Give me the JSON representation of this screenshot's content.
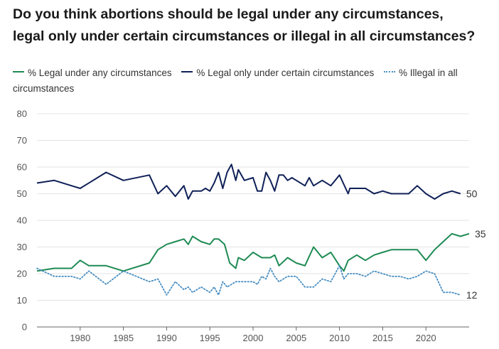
{
  "title_line1": "Do you think abortions should be legal under any circumstances,",
  "title_line2": "legal only under certain circumstances or illegal in all circumstances?",
  "colors": {
    "legal_any": "#1e8a53",
    "legal_certain": "#0f2057",
    "illegal": "#4a8fc2",
    "grid": "#e3e3e3",
    "axis": "#555555"
  },
  "chart_data": {
    "type": "line",
    "xlim": [
      1975,
      2025
    ],
    "ylim": [
      0,
      80
    ],
    "x_ticks": [
      1980,
      1985,
      1990,
      1995,
      2000,
      2005,
      2010,
      2015,
      2020
    ],
    "y_ticks": [
      0,
      10,
      20,
      30,
      40,
      50,
      60,
      70,
      80
    ],
    "legend_position": "top",
    "grid": true,
    "series": [
      {
        "name": "% Legal under any circumstances",
        "style": "solid",
        "end_label": "35",
        "points": [
          [
            1975,
            21
          ],
          [
            1977,
            22
          ],
          [
            1979,
            22
          ],
          [
            1980,
            25
          ],
          [
            1981,
            23
          ],
          [
            1983,
            23
          ],
          [
            1985,
            21
          ],
          [
            1988,
            24
          ],
          [
            1989,
            29
          ],
          [
            1990,
            31
          ],
          [
            1991,
            32
          ],
          [
            1992,
            33
          ],
          [
            1992.5,
            31
          ],
          [
            1993,
            34
          ],
          [
            1994,
            32
          ],
          [
            1995,
            31
          ],
          [
            1995.5,
            33
          ],
          [
            1996,
            33
          ],
          [
            1996.7,
            31
          ],
          [
            1997.3,
            24
          ],
          [
            1998,
            22
          ],
          [
            1998.3,
            26
          ],
          [
            1999,
            25
          ],
          [
            2000,
            28
          ],
          [
            2001,
            26
          ],
          [
            2002,
            26
          ],
          [
            2002.5,
            27
          ],
          [
            2003,
            23
          ],
          [
            2004,
            26
          ],
          [
            2005,
            24
          ],
          [
            2006,
            23
          ],
          [
            2007,
            30
          ],
          [
            2008,
            26
          ],
          [
            2009,
            28
          ],
          [
            2010,
            23
          ],
          [
            2010.5,
            21
          ],
          [
            2011,
            25
          ],
          [
            2012,
            27
          ],
          [
            2013,
            25
          ],
          [
            2014,
            27
          ],
          [
            2015,
            28
          ],
          [
            2016,
            29
          ],
          [
            2017,
            29
          ],
          [
            2019,
            29
          ],
          [
            2020,
            25
          ],
          [
            2021,
            29
          ],
          [
            2022,
            32
          ],
          [
            2023,
            35
          ],
          [
            2024,
            34
          ],
          [
            2025,
            35
          ]
        ]
      },
      {
        "name": "% Legal only under certain circumstances",
        "style": "solid",
        "end_label": "50",
        "points": [
          [
            1975,
            54
          ],
          [
            1977,
            55
          ],
          [
            1979,
            53
          ],
          [
            1980,
            52
          ],
          [
            1983,
            58
          ],
          [
            1985,
            55
          ],
          [
            1988,
            57
          ],
          [
            1989,
            50
          ],
          [
            1990,
            53
          ],
          [
            1991,
            49
          ],
          [
            1992,
            53
          ],
          [
            1992.5,
            48
          ],
          [
            1993,
            51
          ],
          [
            1994,
            51
          ],
          [
            1994.5,
            52
          ],
          [
            1995,
            51
          ],
          [
            1995.5,
            54
          ],
          [
            1996,
            58
          ],
          [
            1996.5,
            52
          ],
          [
            1997,
            58
          ],
          [
            1997.5,
            61
          ],
          [
            1998,
            55
          ],
          [
            1998.3,
            59
          ],
          [
            1999,
            55
          ],
          [
            2000,
            56
          ],
          [
            2000.5,
            51
          ],
          [
            2001,
            51
          ],
          [
            2001.5,
            58
          ],
          [
            2002,
            55
          ],
          [
            2002.5,
            51
          ],
          [
            2003,
            57
          ],
          [
            2003.5,
            57
          ],
          [
            2004,
            55
          ],
          [
            2004.5,
            56
          ],
          [
            2005,
            55
          ],
          [
            2006,
            53
          ],
          [
            2006.5,
            56
          ],
          [
            2007,
            53
          ],
          [
            2008,
            55
          ],
          [
            2009,
            53
          ],
          [
            2010,
            57
          ],
          [
            2011,
            50
          ],
          [
            2011.2,
            52
          ],
          [
            2012,
            52
          ],
          [
            2013,
            52
          ],
          [
            2014,
            50
          ],
          [
            2015,
            51
          ],
          [
            2016,
            50
          ],
          [
            2017,
            50
          ],
          [
            2018,
            50
          ],
          [
            2019,
            53
          ],
          [
            2020,
            50
          ],
          [
            2021,
            48
          ],
          [
            2022,
            50
          ],
          [
            2023,
            51
          ],
          [
            2024,
            50
          ]
        ]
      },
      {
        "name": "% Illegal in all circumstances",
        "style": "dotted",
        "end_label": "12",
        "points": [
          [
            1975,
            22
          ],
          [
            1977,
            19
          ],
          [
            1979,
            19
          ],
          [
            1980,
            18
          ],
          [
            1981,
            21
          ],
          [
            1983,
            16
          ],
          [
            1985,
            21
          ],
          [
            1988,
            17
          ],
          [
            1989,
            18
          ],
          [
            1990,
            12
          ],
          [
            1991,
            17
          ],
          [
            1992,
            14
          ],
          [
            1992.5,
            15
          ],
          [
            1993,
            13
          ],
          [
            1994,
            15
          ],
          [
            1995,
            13
          ],
          [
            1995.5,
            15
          ],
          [
            1996,
            12
          ],
          [
            1996.5,
            17
          ],
          [
            1997,
            15
          ],
          [
            1998,
            17
          ],
          [
            1999,
            17
          ],
          [
            2000,
            17
          ],
          [
            2000.5,
            16
          ],
          [
            2001,
            19
          ],
          [
            2001.5,
            18
          ],
          [
            2002,
            22
          ],
          [
            2002.5,
            19
          ],
          [
            2003,
            17
          ],
          [
            2004,
            19
          ],
          [
            2005,
            19
          ],
          [
            2006,
            15
          ],
          [
            2007,
            15
          ],
          [
            2008,
            18
          ],
          [
            2009,
            17
          ],
          [
            2010,
            23
          ],
          [
            2010.5,
            18
          ],
          [
            2011,
            20
          ],
          [
            2012,
            20
          ],
          [
            2013,
            19
          ],
          [
            2014,
            21
          ],
          [
            2015,
            20
          ],
          [
            2016,
            19
          ],
          [
            2017,
            19
          ],
          [
            2018,
            18
          ],
          [
            2019,
            19
          ],
          [
            2020,
            21
          ],
          [
            2021,
            20
          ],
          [
            2022,
            13
          ],
          [
            2023,
            13
          ],
          [
            2024,
            12
          ]
        ]
      }
    ]
  }
}
